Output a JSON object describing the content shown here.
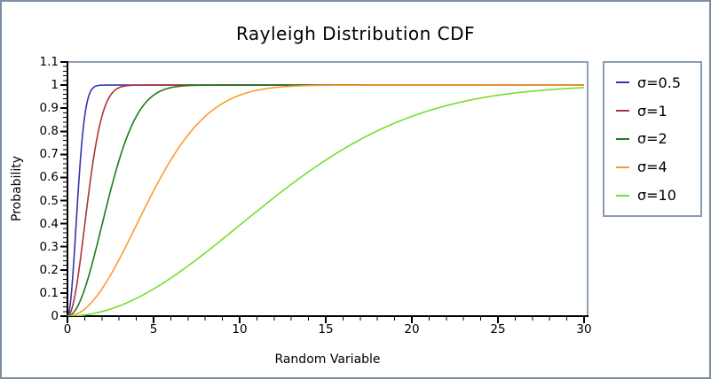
{
  "figure": {
    "background": "#ffffff",
    "frame_color": "#7d8ea3"
  },
  "chart_data": {
    "type": "line",
    "title": "Rayleigh Distribution CDF",
    "xlabel": "Random Variable",
    "ylabel": "Probability",
    "xlim": [
      0,
      30
    ],
    "ylim": [
      0,
      1.1
    ],
    "x_major_ticks": [
      0,
      5,
      10,
      15,
      20,
      25,
      30
    ],
    "x_major_tick_labels": [
      "0",
      "5",
      "10",
      "15",
      "20",
      "25",
      "30"
    ],
    "x_minor_tick_step": 1,
    "y_major_ticks": [
      0,
      0.1,
      0.2,
      0.3,
      0.4,
      0.5,
      0.6,
      0.7,
      0.8,
      0.9,
      1,
      1.1
    ],
    "y_major_tick_labels": [
      "0",
      "0.1",
      "0.2",
      "0.3",
      "0.4",
      "0.5",
      "0.6",
      "0.7",
      "0.8",
      "0.9",
      "1",
      "1.1"
    ],
    "y_minor_tick_step": 0.02,
    "grid": false,
    "legend_position": "outside-right",
    "curve_formula": "F(x) = 1 - exp(-x^2 / (2*sigma^2))",
    "axis_color": "#000000",
    "box_color": "#8fa1b3",
    "series": [
      {
        "label": "σ=0.5",
        "sigma": 0.5,
        "color": "#3534b0"
      },
      {
        "label": "σ=1",
        "sigma": 1,
        "color": "#ae3334"
      },
      {
        "label": "σ=2",
        "sigma": 2,
        "color": "#1e7a1e"
      },
      {
        "label": "σ=4",
        "sigma": 4,
        "color": "#ff9933"
      },
      {
        "label": "σ=10",
        "sigma": 10,
        "color": "#77dd2c"
      }
    ]
  }
}
